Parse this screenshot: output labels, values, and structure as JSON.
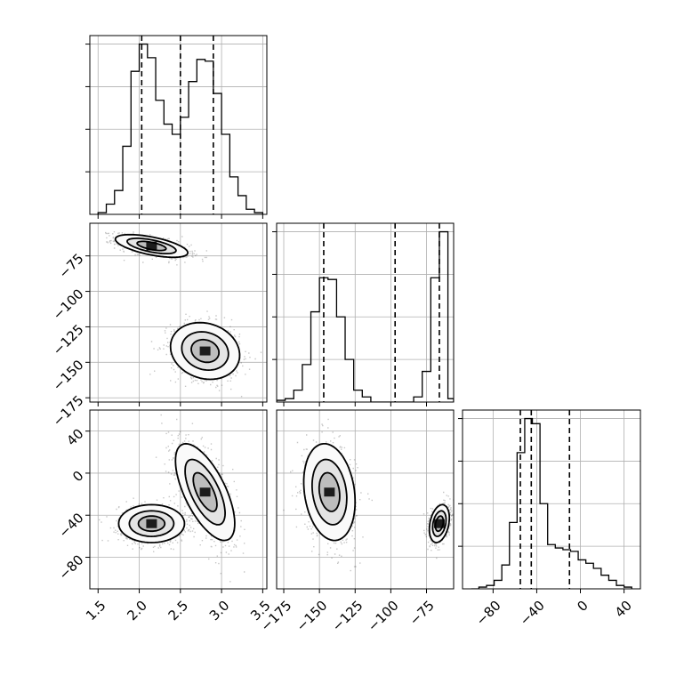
{
  "chart_data": [
    {
      "type": "histogram",
      "panel": "marginal-param-1",
      "xlim": [
        1.4,
        3.55
      ],
      "grid": true,
      "bin_edges": [
        1.5,
        1.6,
        1.7,
        1.8,
        1.9,
        2.0,
        2.1,
        2.2,
        2.3,
        2.4,
        2.5,
        2.6,
        2.7,
        2.8,
        2.9,
        3.0,
        3.1,
        3.2,
        3.3,
        3.4,
        3.5
      ],
      "counts": [
        0.01,
        0.06,
        0.14,
        0.4,
        0.84,
        1.0,
        0.92,
        0.67,
        0.53,
        0.47,
        0.57,
        0.78,
        0.91,
        0.9,
        0.71,
        0.47,
        0.22,
        0.11,
        0.03,
        0.01
      ],
      "quantile_lines": [
        2.03,
        2.5,
        2.9
      ]
    },
    {
      "type": "scatter",
      "panel": "joint-param-1-vs-param-2",
      "xlim": [
        1.4,
        3.55
      ],
      "ylim": [
        -178,
        -52
      ],
      "yticks": [
        "−75",
        "−100",
        "−125",
        "−150",
        "−175"
      ],
      "clusters": [
        {
          "mean": [
            2.15,
            -68
          ],
          "sd": [
            0.22,
            4.0
          ],
          "corr": -0.6,
          "n": 900,
          "contour_levels": 3
        },
        {
          "mean": [
            2.8,
            -142
          ],
          "sd": [
            0.21,
            10.0
          ],
          "corr": -0.15,
          "n": 900,
          "contour_levels": 3
        }
      ]
    },
    {
      "type": "histogram",
      "panel": "marginal-param-2",
      "xlim": [
        -180,
        -56
      ],
      "grid": true,
      "bin_edges": [
        -180,
        -174,
        -168,
        -162,
        -156,
        -150,
        -144,
        -138,
        -132,
        -126,
        -120,
        -114,
        -108,
        -102,
        -96,
        -90,
        -84,
        -78,
        -72,
        -66,
        -60,
        -56
      ],
      "counts": [
        0.01,
        0.02,
        0.07,
        0.22,
        0.53,
        0.73,
        0.72,
        0.5,
        0.25,
        0.07,
        0.03,
        0.0,
        0.0,
        0.0,
        0.0,
        0.0,
        0.03,
        0.18,
        0.73,
        1.0,
        0.02
      ],
      "quantile_lines": [
        -147,
        -97,
        -66
      ]
    },
    {
      "type": "scatter",
      "panel": "joint-param-1-vs-param-3",
      "xlim": [
        1.4,
        3.55
      ],
      "ylim": [
        -110,
        60
      ],
      "yticks": [
        "40",
        "0",
        "−40",
        "−80"
      ],
      "clusters": [
        {
          "mean": [
            2.15,
            -48
          ],
          "sd": [
            0.2,
            9.0
          ],
          "corr": 0.0,
          "n": 900,
          "contour_levels": 3
        },
        {
          "mean": [
            2.8,
            -18
          ],
          "sd": [
            0.18,
            23.0
          ],
          "corr": -0.65,
          "n": 900,
          "contour_levels": 3
        }
      ]
    },
    {
      "type": "scatter",
      "panel": "joint-param-2-vs-param-3",
      "xlim": [
        -180,
        -56
      ],
      "ylim": [
        -110,
        60
      ],
      "clusters": [
        {
          "mean": [
            -143,
            -18
          ],
          "sd": [
            9.0,
            23.0
          ],
          "corr": -0.2,
          "n": 900,
          "contour_levels": 3
        },
        {
          "mean": [
            -66,
            -48
          ],
          "sd": [
            3.5,
            9.0
          ],
          "corr": 0.3,
          "n": 700,
          "contour_levels": 3
        }
      ]
    },
    {
      "type": "histogram",
      "panel": "marginal-param-3",
      "xlim": [
        -108,
        55
      ],
      "xticks": [
        "−80",
        "−40",
        "0",
        "40"
      ],
      "grid": true,
      "bin_edges": [
        -100,
        -93,
        -86,
        -79,
        -72,
        -65,
        -58,
        -51,
        -44,
        -37,
        -30,
        -23,
        -16,
        -9,
        -2,
        5,
        12,
        19,
        26,
        33,
        40,
        47
      ],
      "counts": [
        0.0,
        0.01,
        0.02,
        0.05,
        0.14,
        0.39,
        0.8,
        1.0,
        0.97,
        0.5,
        0.26,
        0.24,
        0.23,
        0.22,
        0.17,
        0.15,
        0.12,
        0.08,
        0.05,
        0.02,
        0.01
      ],
      "quantile_lines": [
        -55,
        -45,
        -10
      ]
    }
  ],
  "x_tick_labels": {
    "param_1": [
      "1.5",
      "2.0",
      "2.5",
      "3.0",
      "3.5"
    ],
    "param_2": [
      "−175",
      "−150",
      "−125",
      "−100",
      "−75"
    ]
  }
}
